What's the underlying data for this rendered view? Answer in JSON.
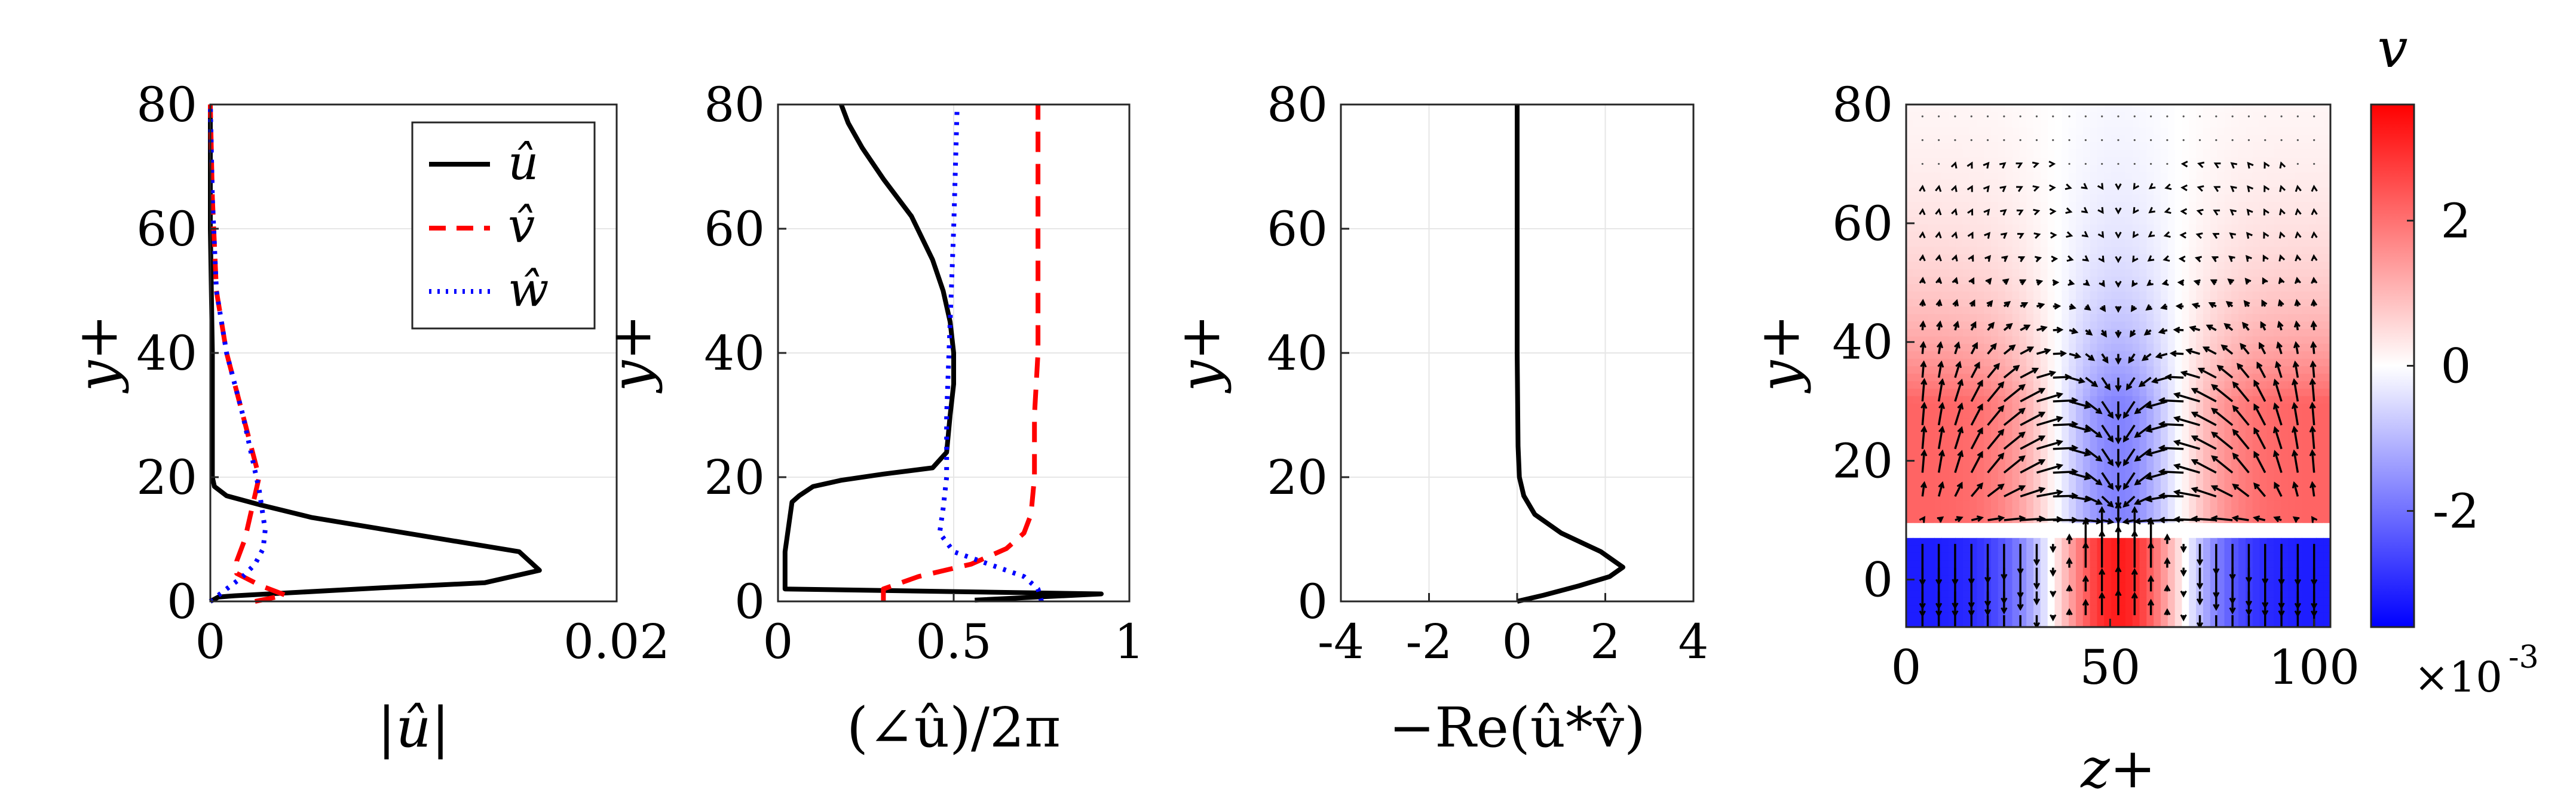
{
  "chart_data": [
    {
      "type": "line",
      "panel": "magnitude",
      "xlabel": "|û|",
      "ylabel": "y+",
      "xlim": [
        0,
        0.02
      ],
      "ylim": [
        0,
        80
      ],
      "xticks": [
        "0",
        "0.02"
      ],
      "yticks": [
        "0",
        "20",
        "40",
        "60",
        "80"
      ],
      "grid": true,
      "legend": "top-right",
      "series": [
        {
          "name": "û",
          "color": "#000000",
          "dash": "solid",
          "x": [
            0.0,
            0.0004,
            0.0012,
            0.004,
            0.0085,
            0.0135,
            0.0162,
            0.0152,
            0.01,
            0.005,
            0.0025,
            0.0008,
            0.0002,
            0.0001,
            0.0001,
            0.0001,
            0.0,
            0.0
          ],
          "y": [
            0,
            0.7,
            0.9,
            1.4,
            2.2,
            3.0,
            5.0,
            8.0,
            10.8,
            13.5,
            15.5,
            17.0,
            18.5,
            20.0,
            25.0,
            40.0,
            60.0,
            80.0
          ]
        },
        {
          "name": "v̂",
          "color": "#ff0000",
          "dash": "dashed",
          "x": [
            0.0022,
            0.0037,
            0.0025,
            0.0013,
            0.0013,
            0.0017,
            0.0024,
            0.0016,
            0.0008,
            0.0003,
            0.0001,
            0.0
          ],
          "y": [
            0,
            1.0,
            2.5,
            4.5,
            6.5,
            10.0,
            20.0,
            30.0,
            40.0,
            50.0,
            65.0,
            80.0
          ]
        },
        {
          "name": "ŵ",
          "color": "#0000ff",
          "dash": "dotted",
          "x": [
            0.0,
            0.0008,
            0.0016,
            0.0022,
            0.0026,
            0.0027,
            0.0024,
            0.0016,
            0.0008,
            0.0003,
            0.0001,
            0.0
          ],
          "y": [
            0,
            2.0,
            4.0,
            6.0,
            8.5,
            11.5,
            18.0,
            30.0,
            40.0,
            50.0,
            65.0,
            80.0
          ]
        }
      ]
    },
    {
      "type": "line",
      "panel": "phase",
      "xlabel": "(∠û)/2π",
      "ylabel": "y+",
      "xlim": [
        0,
        1
      ],
      "ylim": [
        0,
        80
      ],
      "xticks": [
        "0",
        "0.5",
        "1"
      ],
      "yticks": [
        "0",
        "20",
        "40",
        "60",
        "80"
      ],
      "grid": true,
      "series": [
        {
          "name": "û",
          "color": "#000000",
          "dash": "solid",
          "x": [
            0.56,
            0.92,
            0.02,
            0.02,
            0.04,
            0.06,
            0.1,
            0.18,
            0.3,
            0.44,
            0.48,
            0.49,
            0.5,
            0.5,
            0.49,
            0.47,
            0.44,
            0.38,
            0.3,
            0.24,
            0.2,
            0.18
          ],
          "y": [
            0.2,
            1.2,
            2.0,
            8.0,
            16.0,
            17.0,
            18.5,
            19.5,
            20.5,
            21.5,
            24.0,
            30.0,
            35.0,
            40.0,
            45.0,
            50.0,
            55.0,
            62.0,
            68.0,
            73.0,
            77.0,
            80.0
          ]
        },
        {
          "name": "v̂",
          "color": "#ff0000",
          "dash": "dashed",
          "x": [
            0.3,
            0.3,
            0.4,
            0.55,
            0.65,
            0.7,
            0.72,
            0.73,
            0.73,
            0.74,
            0.74,
            0.74,
            0.74
          ],
          "y": [
            0,
            2.0,
            4.0,
            6.0,
            8.5,
            11.0,
            14.0,
            20.0,
            30.0,
            40.0,
            55.0,
            70.0,
            80.0
          ]
        },
        {
          "name": "ŵ",
          "color": "#0000ff",
          "dash": "dotted",
          "x": [
            0.75,
            0.74,
            0.7,
            0.6,
            0.5,
            0.46,
            0.47,
            0.48,
            0.48,
            0.49,
            0.5,
            0.51
          ],
          "y": [
            0,
            2.0,
            4.0,
            6.0,
            8.0,
            11.0,
            15.0,
            20.0,
            30.0,
            45.0,
            60.0,
            80.0
          ]
        }
      ]
    },
    {
      "type": "line",
      "panel": "stress",
      "xlabel": "−Re(û*v̂)",
      "ylabel": "y+",
      "xlim": [
        -4,
        4
      ],
      "ylim": [
        0,
        80
      ],
      "xticks": [
        "-4",
        "-2",
        "0",
        "2",
        "4"
      ],
      "yticks": [
        "0",
        "20",
        "40",
        "60",
        "80"
      ],
      "grid": true,
      "series": [
        {
          "name": "",
          "color": "#000000",
          "dash": "solid",
          "x": [
            0.0,
            0.6,
            1.4,
            2.1,
            2.4,
            1.9,
            1.0,
            0.4,
            0.15,
            0.05,
            0.02,
            0.0,
            0.0
          ],
          "y": [
            0,
            1.0,
            2.5,
            4.0,
            5.5,
            8.0,
            11.0,
            14.0,
            17.0,
            20.0,
            25.0,
            40.0,
            80.0
          ]
        }
      ]
    },
    {
      "type": "heatmap",
      "panel": "field",
      "xlabel": "z+",
      "ylabel": "y+",
      "xlim": [
        0,
        104
      ],
      "ylim": [
        -8,
        80
      ],
      "xticks": [
        "0",
        "50",
        "100"
      ],
      "yticks": [
        "0",
        "20",
        "40",
        "60",
        "80"
      ],
      "colorbar": {
        "title": "v",
        "min": -3.6,
        "max": 3.6,
        "ticks": [
          "-2",
          "0",
          "2"
        ],
        "exponent_label": "×10",
        "exponent_power": "-3",
        "colors": [
          "#0000ff",
          "#ffffff",
          "#ff0000"
        ]
      },
      "field_description": "quiver"
    }
  ]
}
